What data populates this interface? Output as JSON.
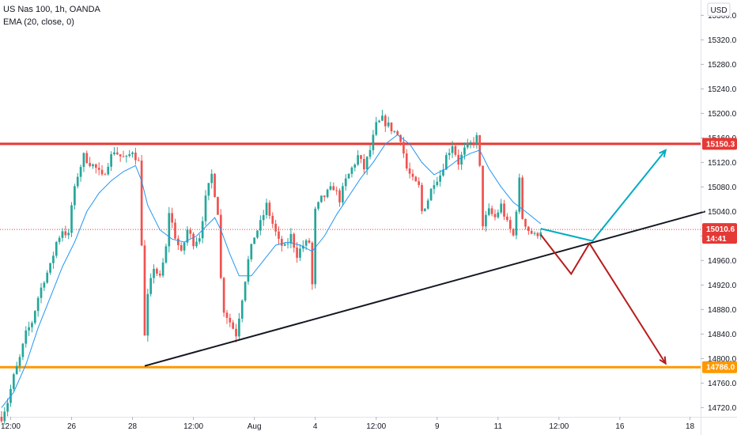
{
  "header": {
    "symbol_line": "US Nas 100, 1h, OANDA",
    "indicator_line": "EMA (20, close, 0)",
    "currency": "USD"
  },
  "chart_data": {
    "type": "candlestick",
    "symbol": "US Nas 100",
    "timeframe": "1h",
    "source": "OANDA",
    "indicator": "EMA (20, close, 0)",
    "currency": "USD",
    "ylim": [
      14705,
      15385
    ],
    "grid": false,
    "y_ticks": [
      14720,
      14760,
      14800,
      14840,
      14880,
      14920,
      14960,
      15000,
      15040,
      15080,
      15120,
      15160,
      15200,
      15240,
      15280,
      15320,
      15360
    ],
    "x_ticks": [
      "12:00",
      "26",
      "28",
      "12:00",
      "Aug",
      "4",
      "12:00",
      "9",
      "11",
      "12:00",
      "16",
      "18"
    ],
    "x_tick_positions": [
      3,
      23,
      43,
      63,
      83,
      103,
      123,
      143,
      163,
      183,
      203,
      226
    ],
    "bars_total": 230,
    "price_tags": [
      {
        "label": "15150.3",
        "value": 15150.3,
        "color": "#e53935"
      },
      {
        "label": "15010.6",
        "sublabel": "14:41",
        "value": 15010.6,
        "color": "#e53935"
      },
      {
        "label": "14786.0",
        "value": 14786.0,
        "color": "#ff9800"
      }
    ],
    "horizontal_lines": [
      {
        "name": "resistance",
        "value": 15150.3,
        "color": "#e53935"
      },
      {
        "name": "support",
        "value": 14786.0,
        "color": "#ff9800"
      },
      {
        "name": "last-price",
        "value": 15010.6,
        "color": "#e53935",
        "dotted": true
      }
    ],
    "trendline": {
      "from": [
        47,
        14788
      ],
      "to": [
        231,
        15040
      ],
      "color": "#131722"
    },
    "projections": [
      {
        "name": "bullish-path",
        "color": "#00acc1",
        "points": [
          [
            177,
            15012
          ],
          [
            194,
            14992
          ],
          [
            218,
            15140
          ]
        ]
      },
      {
        "name": "bearish-path",
        "color": "#b71c1c",
        "points": [
          [
            177,
            15002
          ],
          [
            187,
            14938
          ],
          [
            193,
            14988
          ],
          [
            218,
            14792
          ]
        ]
      }
    ],
    "close_path": [
      [
        0,
        14705
      ],
      [
        2,
        14730
      ],
      [
        4,
        14770
      ],
      [
        6,
        14800
      ],
      [
        8,
        14840
      ],
      [
        10,
        14860
      ],
      [
        12,
        14900
      ],
      [
        14,
        14930
      ],
      [
        16,
        14950
      ],
      [
        18,
        14990
      ],
      [
        20,
        15010
      ],
      [
        22,
        15000
      ],
      [
        23,
        15050
      ],
      [
        25,
        15100
      ],
      [
        27,
        15130
      ],
      [
        29,
        15120
      ],
      [
        31,
        15110
      ],
      [
        33,
        15095
      ],
      [
        35,
        15120
      ],
      [
        37,
        15140
      ],
      [
        39,
        15130
      ],
      [
        41,
        15125
      ],
      [
        43,
        15140
      ],
      [
        45,
        15120
      ],
      [
        46,
        14990
      ],
      [
        47,
        14835
      ],
      [
        48,
        14900
      ],
      [
        50,
        14950
      ],
      [
        52,
        14930
      ],
      [
        54,
        14980
      ],
      [
        55,
        15040
      ],
      [
        57,
        15000
      ],
      [
        59,
        14970
      ],
      [
        61,
        15010
      ],
      [
        63,
        14990
      ],
      [
        65,
        15000
      ],
      [
        67,
        15060
      ],
      [
        69,
        15100
      ],
      [
        71,
        15040
      ],
      [
        72,
        14930
      ],
      [
        73,
        14880
      ],
      [
        75,
        14860
      ],
      [
        77,
        14840
      ],
      [
        79,
        14900
      ],
      [
        81,
        14960
      ],
      [
        83,
        15000
      ],
      [
        85,
        15020
      ],
      [
        87,
        15050
      ],
      [
        89,
        15020
      ],
      [
        91,
        14990
      ],
      [
        93,
        14980
      ],
      [
        95,
        15000
      ],
      [
        97,
        14970
      ],
      [
        99,
        14985
      ],
      [
        101,
        14990
      ],
      [
        102,
        14920
      ],
      [
        103,
        15040
      ],
      [
        105,
        15060
      ],
      [
        107,
        15070
      ],
      [
        109,
        15080
      ],
      [
        111,
        15060
      ],
      [
        113,
        15090
      ],
      [
        115,
        15110
      ],
      [
        117,
        15130
      ],
      [
        119,
        15110
      ],
      [
        121,
        15140
      ],
      [
        123,
        15180
      ],
      [
        125,
        15190
      ],
      [
        127,
        15180
      ],
      [
        129,
        15170
      ],
      [
        131,
        15160
      ],
      [
        133,
        15110
      ],
      [
        135,
        15090
      ],
      [
        137,
        15080
      ],
      [
        138,
        15040
      ],
      [
        140,
        15060
      ],
      [
        142,
        15090
      ],
      [
        144,
        15100
      ],
      [
        146,
        15130
      ],
      [
        148,
        15150
      ],
      [
        150,
        15120
      ],
      [
        152,
        15140
      ],
      [
        154,
        15150
      ],
      [
        156,
        15160
      ],
      [
        157,
        15110
      ],
      [
        158,
        15020
      ],
      [
        160,
        15040
      ],
      [
        162,
        15030
      ],
      [
        164,
        15050
      ],
      [
        166,
        15020
      ],
      [
        168,
        15000
      ],
      [
        170,
        15090
      ],
      [
        171,
        15030
      ],
      [
        173,
        15010
      ],
      [
        175,
        15000
      ],
      [
        177,
        15010
      ]
    ],
    "ema_path": [
      [
        0,
        14720
      ],
      [
        4,
        14745
      ],
      [
        8,
        14790
      ],
      [
        12,
        14850
      ],
      [
        16,
        14900
      ],
      [
        20,
        14950
      ],
      [
        24,
        14990
      ],
      [
        28,
        15040
      ],
      [
        32,
        15070
      ],
      [
        36,
        15090
      ],
      [
        40,
        15105
      ],
      [
        44,
        15115
      ],
      [
        46,
        15090
      ],
      [
        48,
        15050
      ],
      [
        52,
        15010
      ],
      [
        56,
        14995
      ],
      [
        60,
        14990
      ],
      [
        64,
        15000
      ],
      [
        68,
        15020
      ],
      [
        70,
        15030
      ],
      [
        72,
        15010
      ],
      [
        75,
        14970
      ],
      [
        78,
        14935
      ],
      [
        82,
        14935
      ],
      [
        86,
        14960
      ],
      [
        90,
        14985
      ],
      [
        94,
        14990
      ],
      [
        98,
        14985
      ],
      [
        102,
        14975
      ],
      [
        106,
        15000
      ],
      [
        110,
        15035
      ],
      [
        114,
        15065
      ],
      [
        118,
        15095
      ],
      [
        122,
        15120
      ],
      [
        126,
        15150
      ],
      [
        130,
        15165
      ],
      [
        134,
        15150
      ],
      [
        138,
        15120
      ],
      [
        142,
        15100
      ],
      [
        146,
        15110
      ],
      [
        150,
        15125
      ],
      [
        154,
        15135
      ],
      [
        157,
        15140
      ],
      [
        160,
        15110
      ],
      [
        164,
        15080
      ],
      [
        168,
        15055
      ],
      [
        172,
        15040
      ],
      [
        177,
        15020
      ]
    ]
  }
}
